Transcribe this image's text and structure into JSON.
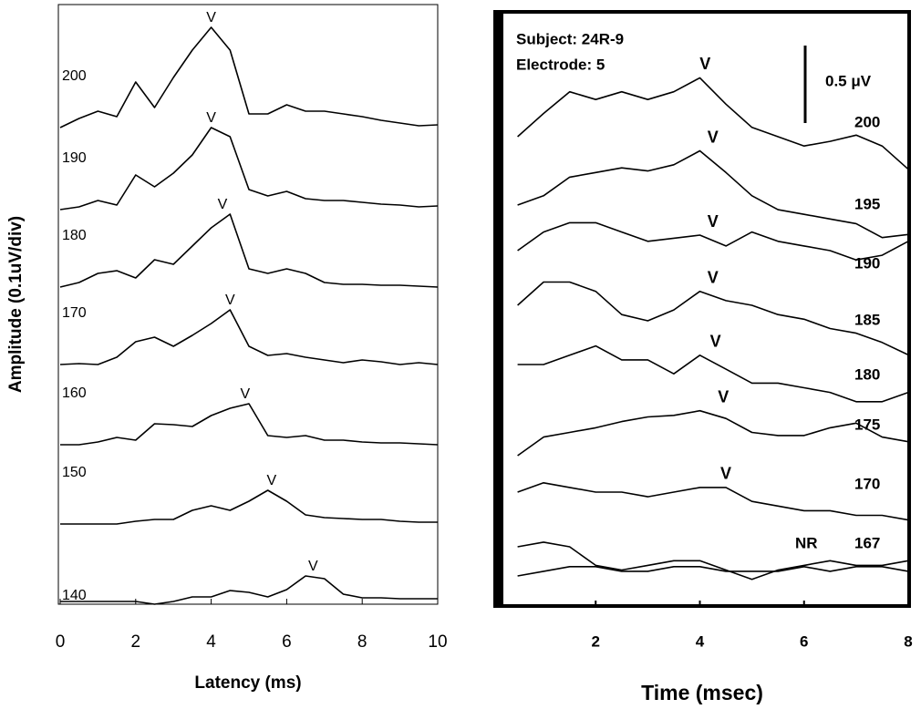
{
  "chart_data": [
    {
      "type": "line",
      "xlabel": "Latency (ms)",
      "ylabel": "Amplitude (0.1uV/div)",
      "peak_marker": "V",
      "xlim": [
        0,
        10
      ],
      "xticks": [
        0,
        2,
        4,
        6,
        8,
        10
      ],
      "color": "#000000",
      "x": [
        0,
        0.5,
        1,
        1.5,
        2,
        2.5,
        3,
        3.5,
        4,
        4.5,
        5,
        5.5,
        6,
        6.5,
        7,
        7.5,
        8,
        8.5,
        9,
        9.5,
        10
      ],
      "series": [
        {
          "name": "200",
          "peak": 4.0,
          "values": [
            0,
            1,
            1.8,
            1.2,
            5,
            2.2,
            5.5,
            8.5,
            11,
            8.5,
            1.5,
            1.5,
            2.5,
            1.8,
            1.8,
            1.5,
            1.2,
            0.8,
            0.5,
            0.2,
            0.3
          ]
        },
        {
          "name": "190",
          "peak": 4.0,
          "values": [
            0,
            0.3,
            1,
            0.5,
            3.8,
            2.5,
            4,
            6,
            9,
            8,
            2.2,
            1.5,
            2,
            1.2,
            1,
            1,
            0.8,
            0.6,
            0.5,
            0.3,
            0.4
          ]
        },
        {
          "name": "180",
          "peak": 4.3,
          "values": [
            0,
            0.5,
            1.5,
            1.8,
            1,
            3,
            2.5,
            4.5,
            6.5,
            8,
            2,
            1.5,
            2,
            1.5,
            0.5,
            0.3,
            0.3,
            0.2,
            0.2,
            0.1,
            0
          ]
        },
        {
          "name": "170",
          "peak": 4.5,
          "values": [
            0,
            0.1,
            0,
            0.8,
            2.5,
            3,
            2,
            3.2,
            4.5,
            6,
            2,
            1,
            1.2,
            0.8,
            0.5,
            0.2,
            0.5,
            0.3,
            0,
            0.2,
            0
          ]
        },
        {
          "name": "160",
          "peak": 4.9,
          "values": [
            0,
            0,
            0.3,
            0.8,
            0.5,
            2.3,
            2.2,
            2,
            3.2,
            4,
            4.5,
            1,
            0.8,
            1,
            0.5,
            0.5,
            0.3,
            0.2,
            0.2,
            0.1,
            0
          ]
        },
        {
          "name": "150",
          "peak": 5.6,
          "values": [
            0,
            0,
            0,
            0,
            0.3,
            0.5,
            0.5,
            1.5,
            2,
            1.5,
            2.5,
            3.7,
            2.5,
            1,
            0.7,
            0.6,
            0.5,
            0.5,
            0.3,
            0.2,
            0.2
          ]
        },
        {
          "name": "140",
          "peak": 6.7,
          "values": [
            0,
            0,
            0,
            0,
            0,
            -0.3,
            0,
            0.5,
            0.5,
            1.2,
            1,
            0.5,
            1.3,
            2.8,
            2.5,
            0.8,
            0.4,
            0.4,
            0.3,
            0.3,
            0.3
          ]
        }
      ]
    },
    {
      "type": "line",
      "xlabel": "Time (msec)",
      "annotations": [
        "Subject: 24R-9",
        "Electrode: 5"
      ],
      "scale_bar": 0.5,
      "scale_bar_label": "0.5 μV",
      "peak_marker": "V",
      "xlim": [
        0,
        8
      ],
      "xticks": [
        2,
        4,
        6,
        8
      ],
      "color": "#000000",
      "x": [
        0.5,
        1,
        1.5,
        2,
        2.5,
        3,
        3.5,
        4,
        4.5,
        5,
        5.5,
        6,
        6.5,
        7,
        7.5,
        8
      ],
      "series": [
        {
          "name": "200",
          "peak": 4.1,
          "values": [
            0,
            0.15,
            0.29,
            0.24,
            0.29,
            0.24,
            0.29,
            0.38,
            0.21,
            0.06,
            0,
            -0.06,
            -0.03,
            0.01,
            -0.06,
            -0.21
          ]
        },
        {
          "name": "195",
          "peak": 4.25,
          "values": [
            0,
            0.06,
            0.18,
            0.21,
            0.24,
            0.22,
            0.26,
            0.35,
            0.21,
            0.06,
            -0.03,
            -0.06,
            -0.09,
            -0.12,
            -0.21,
            -0.19
          ]
        },
        {
          "name": "190",
          "peak": 4.25,
          "values": [
            0,
            0.12,
            0.18,
            0.18,
            0.12,
            0.06,
            0.08,
            0.1,
            0.03,
            0.12,
            0.06,
            0.03,
            0,
            -0.06,
            -0.03,
            0.06
          ]
        },
        {
          "name": "185",
          "peak": 4.25,
          "values": [
            0,
            0.15,
            0.15,
            0.09,
            -0.06,
            -0.1,
            -0.03,
            0.09,
            0.03,
            0,
            -0.06,
            -0.09,
            -0.15,
            -0.18,
            -0.24,
            -0.32
          ]
        },
        {
          "name": "180",
          "peak": 4.3,
          "values": [
            0,
            0,
            0.06,
            0.12,
            0.03,
            0.03,
            -0.06,
            0.06,
            -0.03,
            -0.12,
            -0.12,
            -0.15,
            -0.18,
            -0.24,
            -0.24,
            -0.18
          ]
        },
        {
          "name": "175",
          "peak": 4.45,
          "values": [
            0,
            0.12,
            0.15,
            0.18,
            0.22,
            0.25,
            0.26,
            0.29,
            0.24,
            0.15,
            0.13,
            0.13,
            0.18,
            0.21,
            0.12,
            0.09
          ]
        },
        {
          "name": "170",
          "peak": 4.5,
          "values": [
            0,
            0.06,
            0.03,
            0,
            0,
            -0.03,
            0,
            0.03,
            0.03,
            -0.06,
            -0.09,
            -0.12,
            -0.12,
            -0.15,
            -0.15,
            -0.18
          ]
        },
        {
          "name": "167",
          "values": [
            0,
            0.03,
            0,
            -0.12,
            -0.15,
            -0.12,
            -0.09,
            -0.09,
            -0.15,
            -0.21,
            -0.15,
            -0.12,
            -0.09,
            -0.12,
            -0.12,
            -0.09
          ]
        },
        {
          "name": "NR",
          "values": [
            0,
            0.03,
            0.06,
            0.06,
            0.03,
            0.03,
            0.06,
            0.06,
            0.03,
            0.03,
            0.03,
            0.06,
            0.03,
            0.06,
            0.06,
            0.03
          ]
        }
      ]
    }
  ]
}
